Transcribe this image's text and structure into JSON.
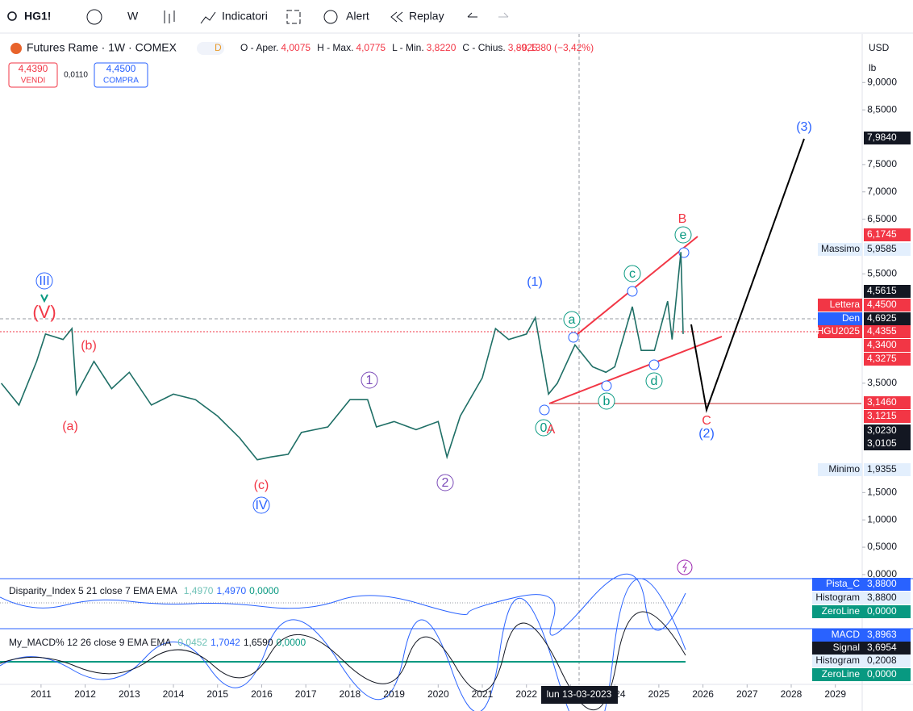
{
  "toolbar": {
    "symbol": "HG1!",
    "interval": "W",
    "indicators": "Indicatori",
    "alert": "Alert",
    "replay": "Replay"
  },
  "header": {
    "title": "Futures Rame · 1W · COMEX",
    "badge": "D",
    "ohlc": [
      {
        "label": "O - Aper.",
        "value": "4,0075"
      },
      {
        "label": "H - Max.",
        "value": "4,0775"
      },
      {
        "label": "L - Min.",
        "value": "3,8220"
      },
      {
        "label": "C - Chius.",
        "value": "3,8925"
      }
    ],
    "change": "−0,1380 (−3,42%)",
    "sell": {
      "price": "4,4390",
      "label": "VENDI"
    },
    "spread": "0,0110",
    "buy": {
      "price": "4,4500",
      "label": "COMPRA"
    },
    "currency": "USD",
    "unit": "lb"
  },
  "chart_data": {
    "type": "line",
    "color": "#1f6f66",
    "x": [
      2010.1,
      2010.5,
      2010.9,
      2011.1,
      2011.5,
      2011.7,
      2011.8,
      2012.0,
      2012.2,
      2012.6,
      2013.0,
      2013.5,
      2014.0,
      2014.5,
      2015.0,
      2015.5,
      2015.9,
      2016.2,
      2016.6,
      2016.9,
      2017.5,
      2018.0,
      2018.4,
      2018.6,
      2019.0,
      2019.5,
      2020.0,
      2020.2,
      2020.5,
      2021.0,
      2021.3,
      2021.6,
      2022.0,
      2022.2,
      2022.5,
      2022.7,
      2023.1,
      2023.5,
      2023.8,
      2024.0,
      2024.4,
      2024.6,
      2024.9,
      2025.2,
      2025.3,
      2025.5,
      2025.55
    ],
    "values": [
      3.5,
      3.1,
      3.9,
      4.4,
      4.3,
      4.5,
      3.3,
      3.6,
      3.9,
      3.4,
      3.7,
      3.1,
      3.3,
      3.2,
      2.9,
      2.5,
      2.1,
      2.15,
      2.2,
      2.6,
      2.7,
      3.2,
      3.2,
      2.7,
      2.8,
      2.65,
      2.8,
      2.15,
      2.9,
      3.6,
      4.5,
      4.3,
      4.4,
      4.7,
      3.3,
      3.5,
      4.2,
      3.8,
      3.7,
      3.8,
      4.9,
      4.1,
      4.1,
      5.0,
      4.3,
      5.9,
      4.4
    ],
    "xlim": [
      2010.07,
      2029.59
    ],
    "ylim": [
      -0.06,
      9.89
    ],
    "xticks": [
      2011,
      2012,
      2013,
      2014,
      2015,
      2016,
      2017,
      2018,
      2019,
      2020,
      2021,
      2022,
      2023,
      2024,
      2025,
      2026,
      2027,
      2028,
      2029
    ],
    "yticks": [
      {
        "value": 0,
        "label": "0,0000"
      },
      {
        "value": 0.5,
        "label": "0,5000"
      },
      {
        "value": 1,
        "label": "1,0000"
      },
      {
        "value": 1.5,
        "label": "1,5000"
      },
      {
        "value": 3.5,
        "label": "3,5000"
      },
      {
        "value": 5.5,
        "label": "5,5000"
      },
      {
        "value": 6.5,
        "label": "6,5000"
      },
      {
        "value": 7,
        "label": "7,0000"
      },
      {
        "value": 7.5,
        "label": "7,5000"
      },
      {
        "value": 8.5,
        "label": "8,5000"
      },
      {
        "value": 9,
        "label": "9,0000"
      }
    ],
    "price_labels": [
      {
        "value": 7.984,
        "label": "7,9840"
      },
      {
        "value": 6.1745,
        "label": "6,1745"
      },
      {
        "name": "Massimo",
        "value": 5.9585,
        "label": "5,9585"
      },
      {
        "value": 4.5615,
        "label": "4,5615"
      },
      {
        "name": "Lettera",
        "value": 4.45,
        "label": "4,4500"
      },
      {
        "name": "Den",
        "value": 4.6925,
        "label": "4,6925"
      },
      {
        "name": "HGU2025",
        "value": 4.4355,
        "label": "4,4355"
      },
      {
        "value": 4.34,
        "label": "4,3400"
      },
      {
        "value": 4.3275,
        "label": "4,3275"
      },
      {
        "value": 3.146,
        "label": "3,1460"
      },
      {
        "value": 3.1215,
        "label": "3,1215"
      },
      {
        "value": 3.023,
        "label": "3,0230"
      },
      {
        "value": 3.0105,
        "label": "3,0105"
      },
      {
        "name": "Minimo",
        "value": 1.9355,
        "label": "1,9355"
      }
    ],
    "annotations": [
      "(3)",
      "B",
      "e",
      "c",
      "(1)",
      "a",
      "III",
      "(V)",
      "(b)",
      "(a)",
      "1",
      "2",
      "(c)",
      "IV",
      "b",
      "d",
      "0",
      "A",
      "C",
      "(2)"
    ],
    "crosshair": "lun 13-03-2023"
  },
  "indicators": [
    {
      "title": "Disparity_Index 5 21 close 7 EMA EMA",
      "values": [
        "1,4970",
        "1,4970",
        "0,0000"
      ],
      "labels": [
        {
          "name": "Pista_C",
          "value": "3,8800"
        },
        {
          "name": "Histogram",
          "value": "3,8800"
        },
        {
          "name": "ZeroLine",
          "value": "0,0000"
        }
      ]
    },
    {
      "title": "My_MACD% 12 26 close 9 EMA EMA",
      "values": [
        "0,0452",
        "1,7042",
        "1,6590",
        "0,0000"
      ],
      "labels": [
        {
          "name": "MACD",
          "value": "3,8963"
        },
        {
          "name": "Signal",
          "value": "3,6954"
        },
        {
          "name": "Histogram",
          "value": "0,2008"
        },
        {
          "name": "ZeroLine",
          "value": "0,0000"
        }
      ]
    }
  ]
}
